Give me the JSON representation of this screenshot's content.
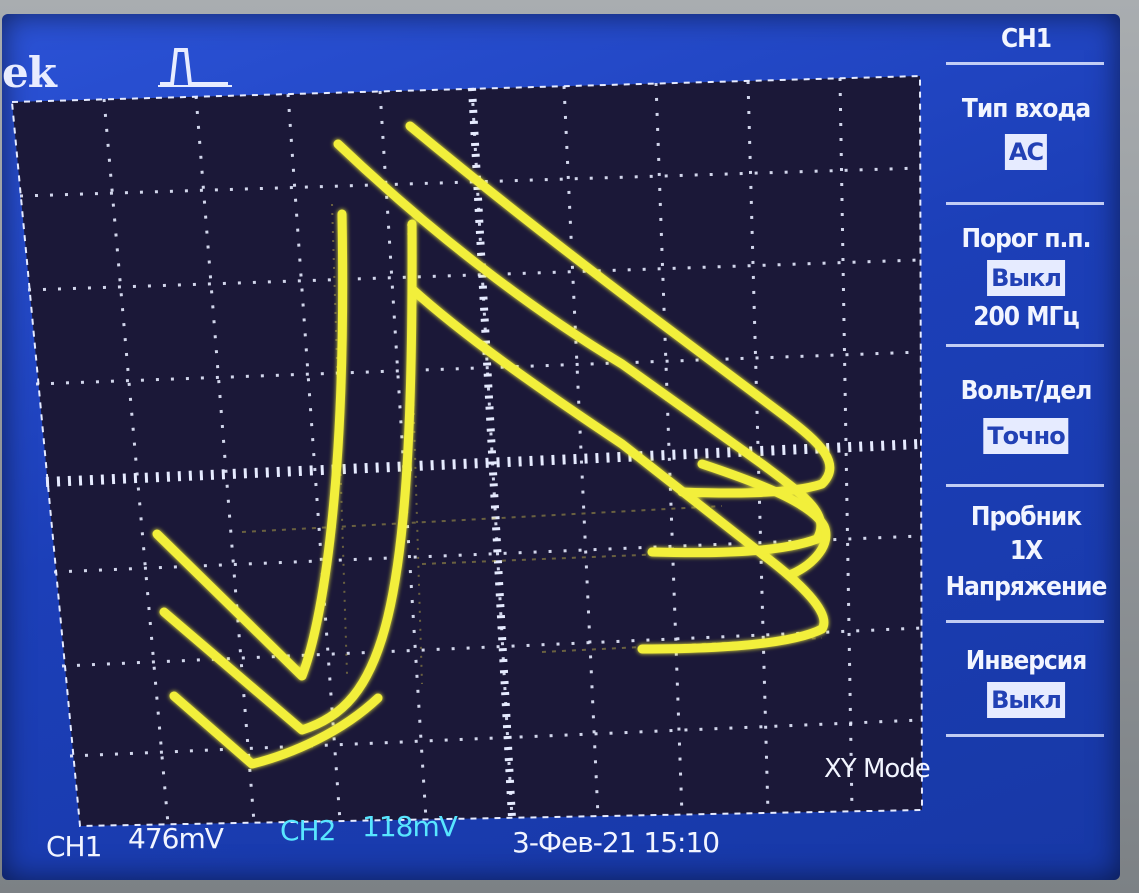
{
  "header": {
    "brand": "ek"
  },
  "display": {
    "mode_label": "XY Mode",
    "trace_color": "#f2ef3a",
    "grid_color": "#e6ebff",
    "background_color": "#1b1838"
  },
  "side_menu": {
    "title": "CH1",
    "items": [
      {
        "label": "Тип входа",
        "value": "AC"
      },
      {
        "label": "Порог п.п.",
        "value": "Выкл",
        "extra": "200 МГц"
      },
      {
        "label": "Вольт/дел",
        "value": "Точно"
      },
      {
        "label": "Пробник",
        "line2": "1X",
        "line3": "Напряжение"
      },
      {
        "label": "Инверсия",
        "value": "Выкл"
      }
    ]
  },
  "status": {
    "ch1_label": "CH1",
    "ch1_scale": "476mV",
    "ch2_label": "CH2",
    "ch2_scale": "118mV",
    "datetime": "3-Фев-21 15:10",
    "ch2_color": "#58e6ff"
  }
}
